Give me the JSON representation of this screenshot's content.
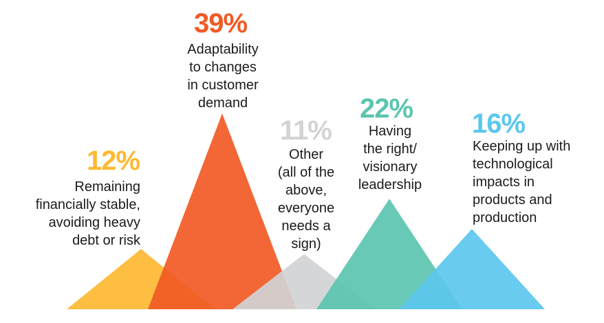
{
  "chart_data": {
    "type": "area",
    "values": [
      12,
      39,
      11,
      22,
      16
    ],
    "unit": "%",
    "items": [
      {
        "value": 12,
        "value_label": "12%",
        "label_lines": [
          "Remaining",
          "financially stable,",
          "avoiding heavy",
          "debt or risk"
        ],
        "color": "#FDB932"
      },
      {
        "value": 39,
        "value_label": "39%",
        "label_lines": [
          "Adaptability",
          "to changes",
          "in customer",
          "demand"
        ],
        "color": "#F15A24"
      },
      {
        "value": 11,
        "value_label": "11%",
        "label_lines": [
          "Other",
          "(all of the",
          "above,",
          "everyone",
          "needs a",
          "sign)"
        ],
        "color": "#D1D3D4"
      },
      {
        "value": 22,
        "value_label": "22%",
        "label_lines": [
          "Having",
          "the right/",
          "visionary",
          "leadership"
        ],
        "color": "#5BC5B0"
      },
      {
        "value": 16,
        "value_label": "16%",
        "label_lines": [
          "Keeping up with",
          "technological",
          "impacts in",
          "products and",
          "production"
        ],
        "color": "#5BC7EE"
      }
    ],
    "ylim": [
      0,
      39
    ]
  }
}
